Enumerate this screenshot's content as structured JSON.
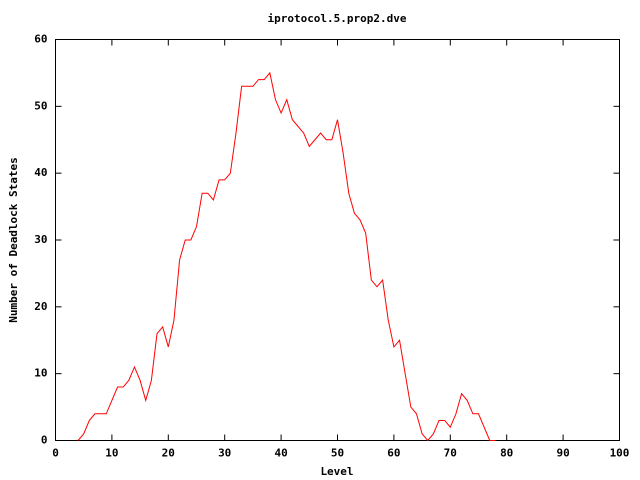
{
  "chart_data": {
    "type": "line",
    "title": "iprotocol.5.prop2.dve",
    "xlabel": "Level",
    "ylabel": "Number of Deadlock States",
    "x": [
      4,
      5,
      6,
      7,
      8,
      9,
      10,
      11,
      12,
      13,
      14,
      15,
      16,
      17,
      18,
      19,
      20,
      21,
      22,
      23,
      24,
      25,
      26,
      27,
      28,
      29,
      30,
      31,
      32,
      33,
      34,
      35,
      36,
      37,
      38,
      39,
      40,
      41,
      42,
      43,
      44,
      45,
      46,
      47,
      48,
      49,
      50,
      51,
      52,
      53,
      54,
      55,
      56,
      57,
      58,
      59,
      60,
      61,
      62,
      63,
      64,
      65,
      66,
      67,
      68,
      69,
      70,
      71,
      72,
      73,
      74,
      75,
      76,
      77,
      78
    ],
    "series": [
      {
        "color": "#ff0000",
        "values": [
          0,
          1,
          3,
          4,
          4,
          4,
          6,
          8,
          8,
          9,
          11,
          9,
          6,
          9,
          16,
          17,
          14,
          18,
          27,
          30,
          30,
          32,
          37,
          37,
          36,
          39,
          39,
          40,
          46,
          53,
          53,
          53,
          54,
          54,
          55,
          51,
          49,
          51,
          48,
          47,
          46,
          44,
          45,
          46,
          45,
          45,
          48,
          43,
          37,
          34,
          33,
          31,
          24,
          23,
          24,
          18,
          14,
          15,
          10,
          5,
          4,
          1,
          0,
          1,
          3,
          3,
          2,
          4,
          7,
          6,
          4,
          4,
          2,
          0,
          0
        ]
      }
    ],
    "xlim": [
      0,
      100
    ],
    "xticks": [
      0,
      10,
      20,
      30,
      40,
      50,
      60,
      70,
      80,
      90,
      100
    ],
    "ylim": [
      0,
      60
    ],
    "yticks": [
      0,
      10,
      20,
      30,
      40,
      50,
      60
    ],
    "grid": false
  }
}
